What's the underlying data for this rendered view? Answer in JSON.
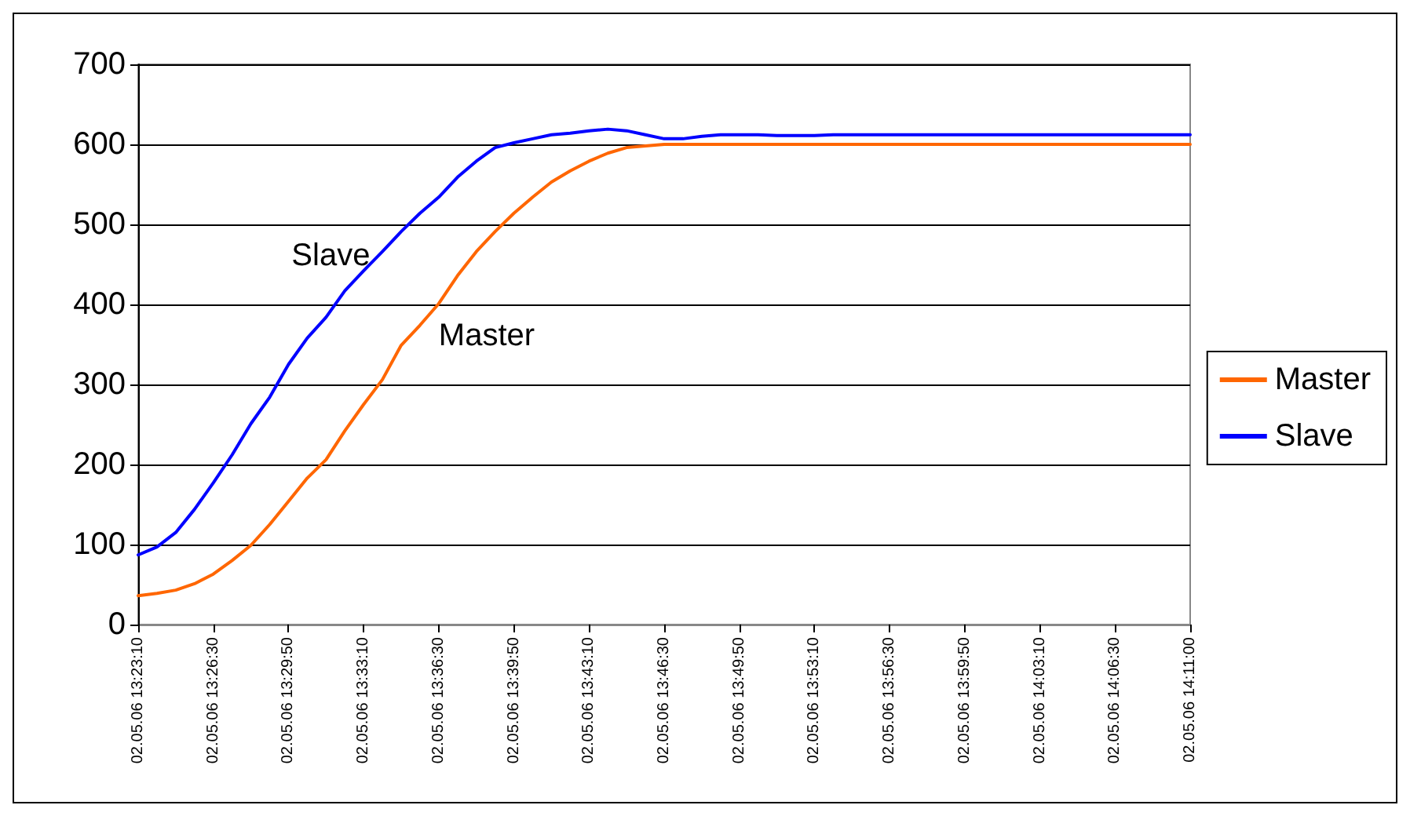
{
  "chart_data": {
    "type": "line",
    "categories": [
      "02.05.06 13:23:10",
      null,
      null,
      null,
      "02.05.06 13:26:30",
      null,
      null,
      null,
      "02.05.06 13:29:50",
      null,
      null,
      null,
      "02.05.06 13:33:10",
      null,
      null,
      null,
      "02.05.06 13:36:30",
      null,
      null,
      null,
      "02.05.06 13:39:50",
      null,
      null,
      null,
      "02.05.06 13:43:10",
      null,
      null,
      null,
      "02.05.06 13:46:30",
      null,
      null,
      null,
      "02.05.06 13:49:50",
      null,
      null,
      null,
      "02.05.06 13:53:10",
      null,
      null,
      null,
      "02.05.06 13:56:30",
      null,
      null,
      null,
      "02.05.06 13:59:50",
      null,
      null,
      null,
      "02.05.06 14:03:10",
      null,
      null,
      null,
      "02.05.06 14:06:30",
      null,
      null,
      null,
      "02.05.06 14:11:00"
    ],
    "series": [
      {
        "name": "Master",
        "color": "#ff6600",
        "values": [
          36,
          39,
          43,
          51,
          63,
          80,
          99,
          125,
          154,
          183,
          206,
          242,
          275,
          306,
          349,
          374,
          401,
          436,
          466,
          491,
          514,
          534,
          553,
          567,
          579,
          589,
          596,
          598,
          600,
          600,
          600,
          600,
          600,
          600,
          600,
          600,
          600,
          600,
          600,
          600,
          600,
          600,
          600,
          600,
          600,
          600,
          600,
          600,
          600,
          600,
          600,
          600,
          600,
          600,
          600,
          600,
          600
        ]
      },
      {
        "name": "Slave",
        "color": "#0000ff",
        "values": [
          87,
          97,
          115,
          144,
          177,
          212,
          251,
          284,
          325,
          358,
          384,
          417,
          442,
          466,
          491,
          514,
          534,
          559,
          579,
          596,
          602,
          607,
          612,
          614,
          617,
          619,
          617,
          612,
          607,
          607,
          610,
          612,
          612,
          612,
          611,
          611,
          611,
          612,
          612,
          612,
          612,
          612,
          612,
          612,
          612,
          612,
          612,
          612,
          612,
          612,
          612,
          612,
          612,
          612,
          612,
          612,
          612
        ]
      }
    ],
    "ylim": [
      0,
      700
    ],
    "yticks": [
      0,
      100,
      200,
      300,
      400,
      500,
      600,
      700
    ],
    "grid": "y",
    "legend": "right",
    "marker": "none",
    "line_style": "solid"
  }
}
